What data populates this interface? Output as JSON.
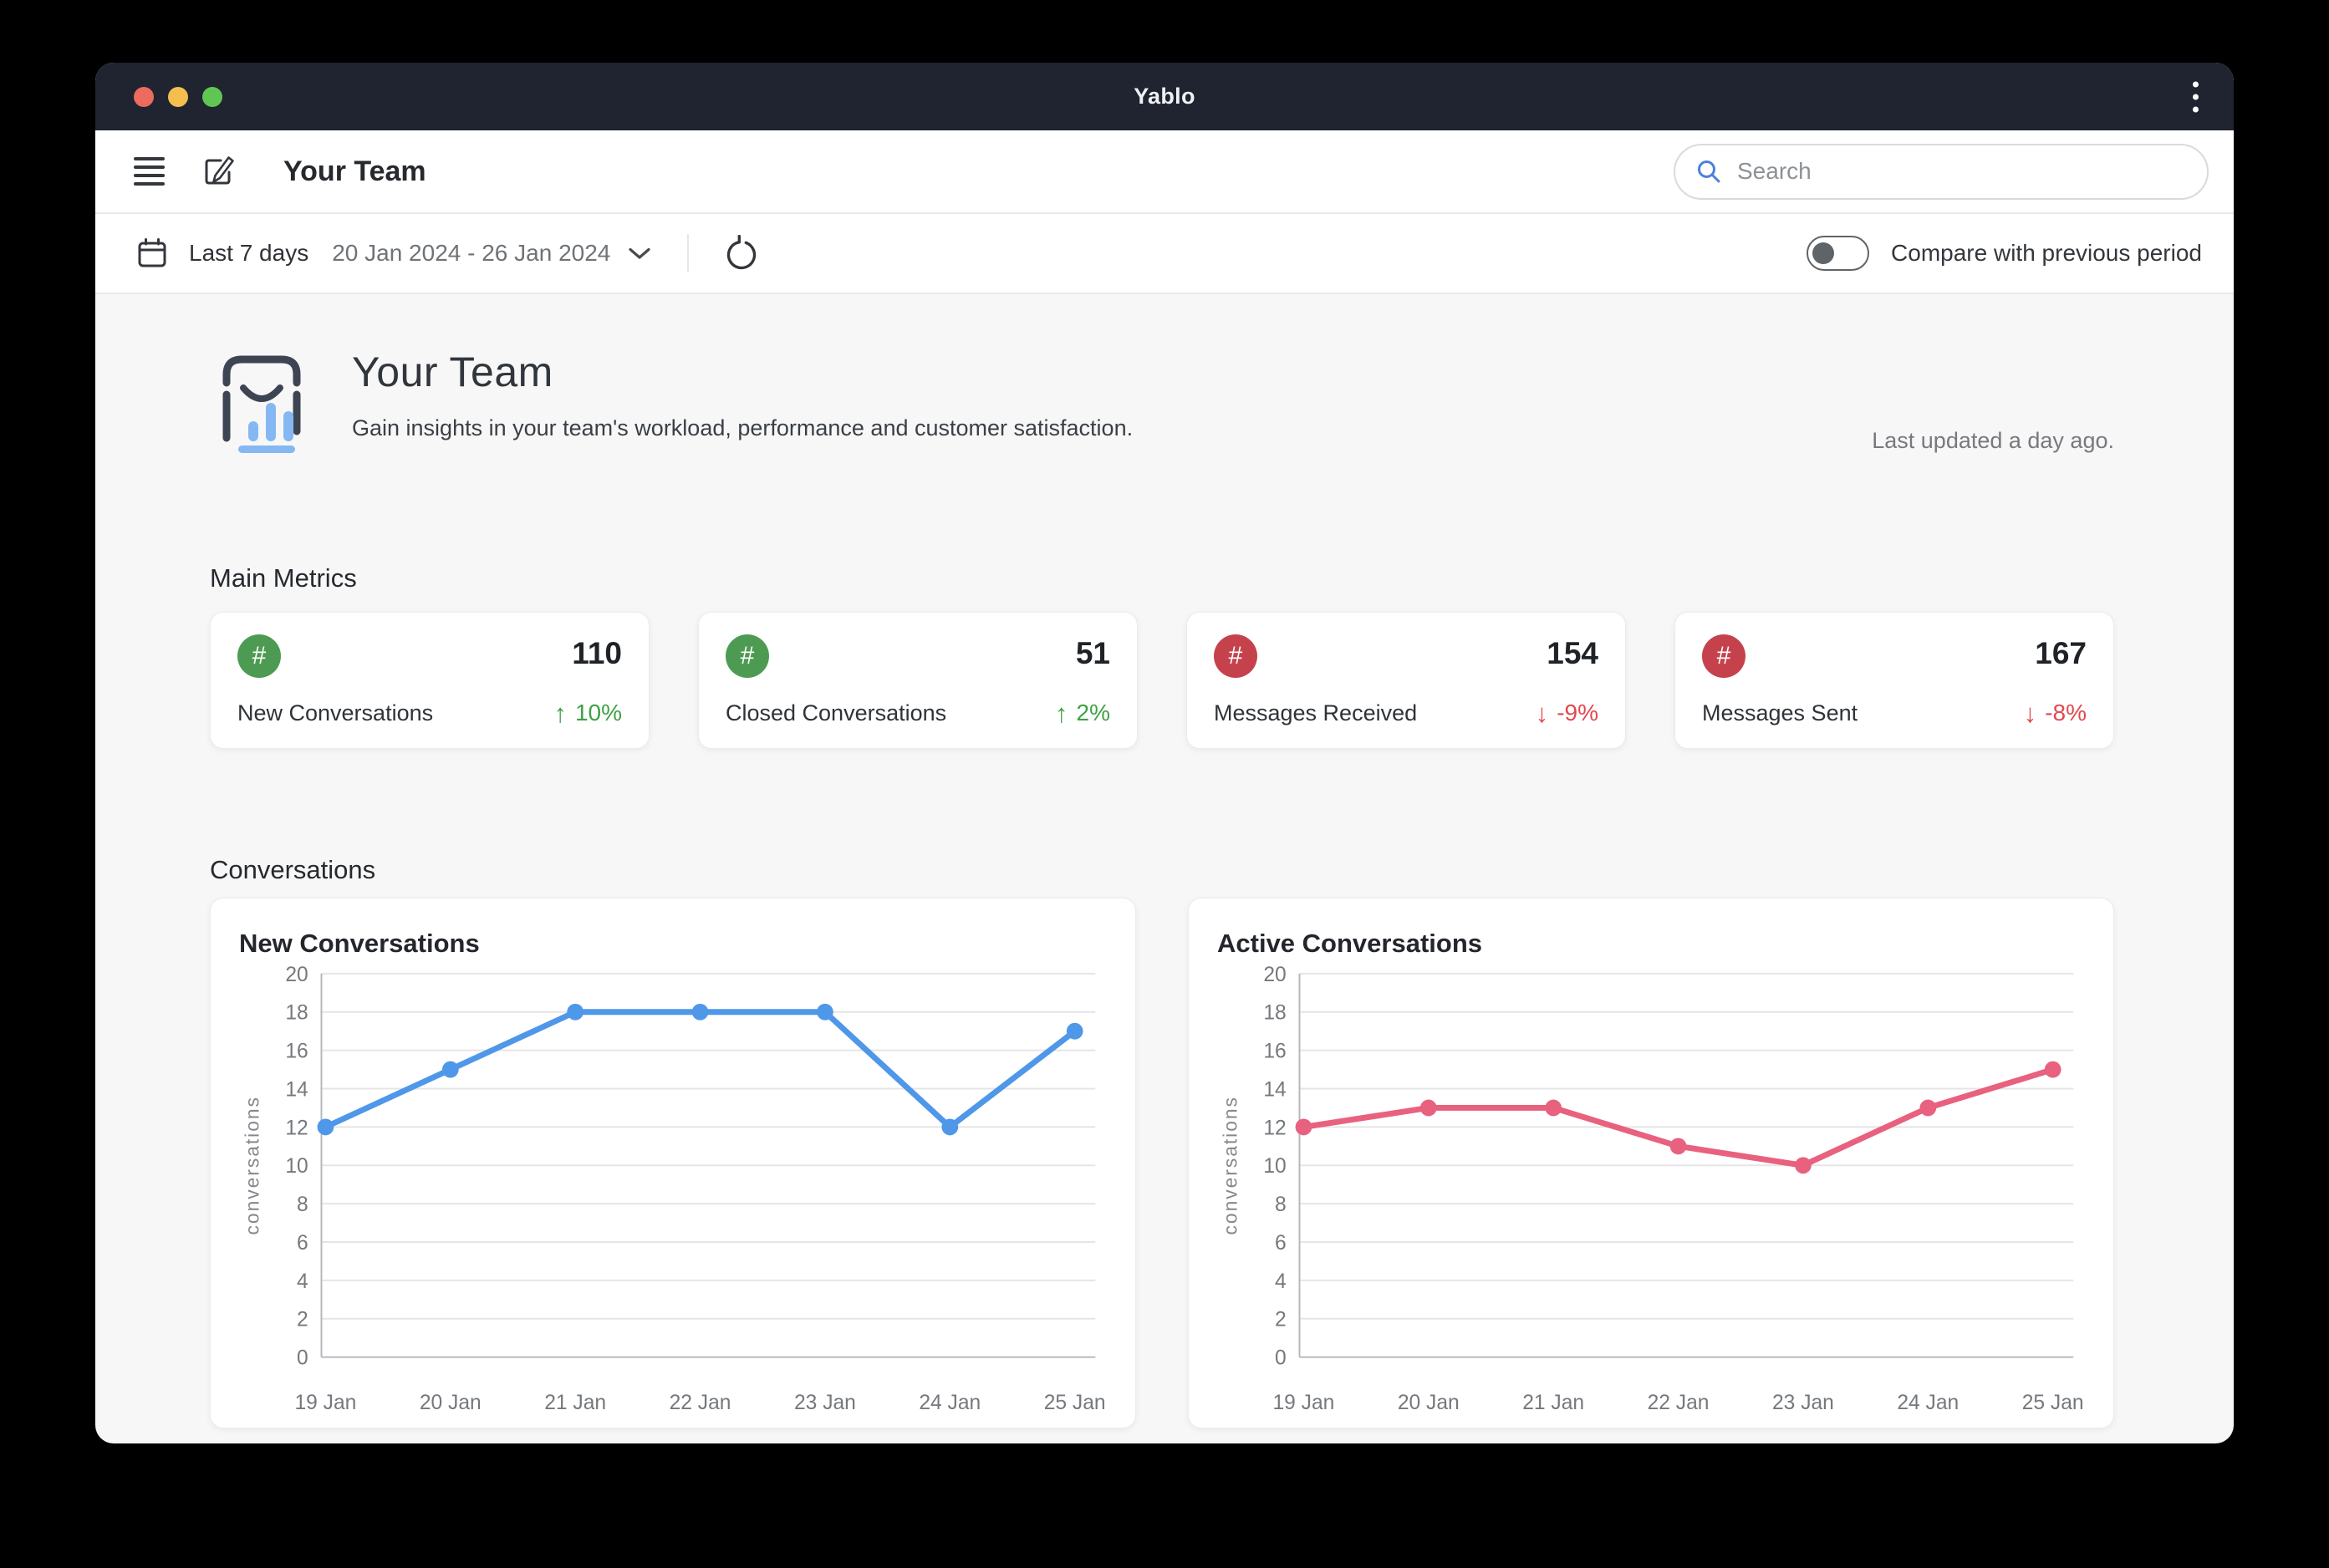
{
  "window": {
    "title": "Yablo"
  },
  "header": {
    "title": "Your Team",
    "search_placeholder": "Search"
  },
  "filter_bar": {
    "range_label": "Last 7 days",
    "range_dates": "20 Jan 2024 - 26 Jan 2024",
    "compare_label": "Compare with previous period"
  },
  "hero": {
    "title": "Your Team",
    "subtitle": "Gain insights in your team's workload, performance and customer satisfaction.",
    "last_updated": "Last updated a day ago."
  },
  "metrics": {
    "section_title": "Main Metrics",
    "badge_symbol": "#",
    "cards": [
      {
        "label": "New Conversations",
        "value": "110",
        "trend": "10%",
        "direction": "up",
        "accent": "#4d9b52"
      },
      {
        "label": "Closed Conversations",
        "value": "51",
        "trend": "2%",
        "direction": "up",
        "accent": "#4d9b52"
      },
      {
        "label": "Messages Received",
        "value": "154",
        "trend": "-9%",
        "direction": "down",
        "accent": "#c5424c"
      },
      {
        "label": "Messages Sent",
        "value": "167",
        "trend": "-8%",
        "direction": "down",
        "accent": "#c5424c"
      }
    ]
  },
  "conversations_section": {
    "title": "Conversations"
  },
  "icons": {
    "up_arrow": "↑",
    "down_arrow": "↓"
  },
  "chart_data": [
    {
      "type": "line",
      "title": "New Conversations",
      "categories": [
        "19 Jan",
        "20 Jan",
        "21 Jan",
        "22 Jan",
        "23 Jan",
        "24 Jan",
        "25 Jan"
      ],
      "values": [
        12,
        15,
        18,
        18,
        18,
        12,
        17
      ],
      "xlabel": "",
      "ylabel": "conversations",
      "ylim": [
        0,
        20
      ],
      "ytick_step": 2,
      "color": "#4f97e8",
      "grid": true,
      "legend": false
    },
    {
      "type": "line",
      "title": "Active Conversations",
      "categories": [
        "19 Jan",
        "20 Jan",
        "21 Jan",
        "22 Jan",
        "23 Jan",
        "24 Jan",
        "25 Jan"
      ],
      "values": [
        12,
        13,
        13,
        11,
        10,
        13,
        15
      ],
      "xlabel": "",
      "ylabel": "conversations",
      "ylim": [
        0,
        20
      ],
      "ytick_step": 2,
      "color": "#e8617e",
      "grid": true,
      "legend": false
    }
  ]
}
